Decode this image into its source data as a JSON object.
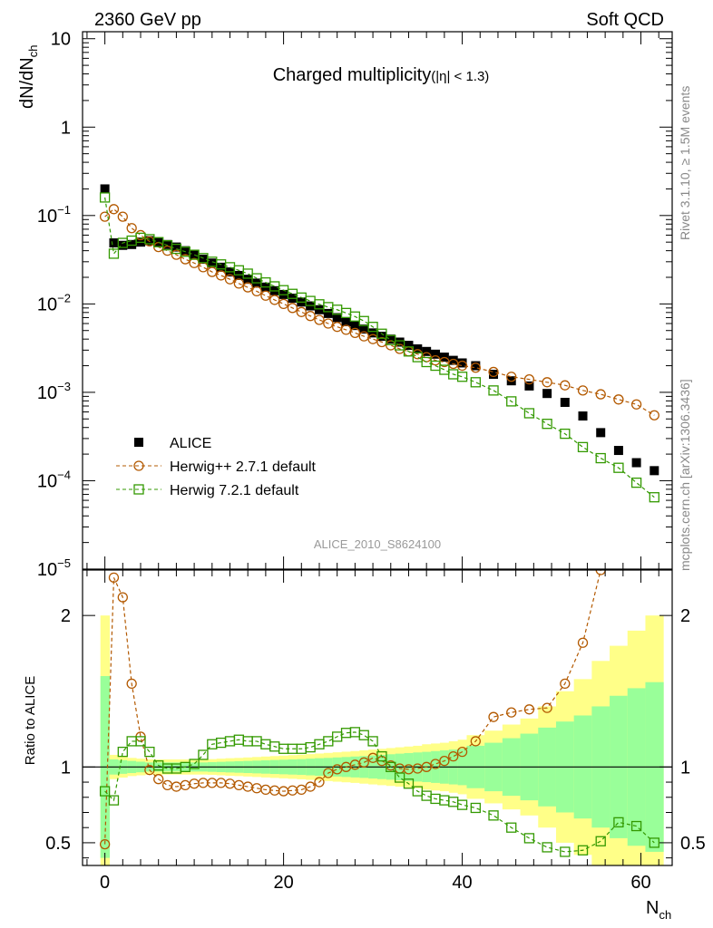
{
  "header": {
    "left": "2360 GeV pp",
    "right": "Soft QCD"
  },
  "side_text": {
    "rivet": "Rivet 3.1.10, ≥ 1.5M events",
    "mcplots": "mcplots.cern.ch [arXiv:1306.3436]"
  },
  "watermark": "ALICE_2010_S8624100",
  "colors": {
    "data": "#000000",
    "herwigpp": "#b35900",
    "herwig7": "#339900",
    "band_inner": "#99ff99",
    "band_outer": "#ffff88"
  },
  "chart_data": [
    {
      "type": "scatter",
      "title": "Charged multiplicity",
      "title_suffix": "(|η| < 1.3)",
      "ylabel": "dN/dN",
      "ylabel_sub": "ch",
      "yscale": "log",
      "ylim": [
        1e-05,
        12
      ],
      "xlim": [
        -2.5,
        63.5
      ],
      "yticks": [
        {
          "v": 10,
          "base": "10",
          "exp": ""
        },
        {
          "v": 1,
          "base": "1",
          "exp": ""
        },
        {
          "v": 0.1,
          "base": "10",
          "exp": "−1"
        },
        {
          "v": 0.01,
          "base": "10",
          "exp": "−2"
        },
        {
          "v": 0.001,
          "base": "10",
          "exp": "−3"
        },
        {
          "v": 0.0001,
          "base": "10",
          "exp": "−4"
        },
        {
          "v": 1e-05,
          "base": "10",
          "exp": "−5"
        }
      ],
      "legend": [
        "ALICE",
        "Herwig++ 2.7.1 default",
        "Herwig 7.2.1 default"
      ],
      "series": [
        {
          "name": "ALICE",
          "x": [
            0,
            1,
            2,
            3,
            4,
            5,
            6,
            7,
            8,
            9,
            10,
            11,
            12,
            13,
            14,
            15,
            16,
            17,
            18,
            19,
            20,
            21,
            22,
            23,
            24,
            25,
            26,
            27,
            28,
            29,
            30,
            31,
            32,
            33,
            34,
            35,
            36,
            37,
            38,
            39,
            40,
            41.5,
            43.5,
            45.5,
            47.5,
            49.5,
            51.5,
            53.5,
            55.5,
            57.5,
            59.5,
            61.5
          ],
          "y": [
            0.2,
            0.049,
            0.046,
            0.047,
            0.05,
            0.052,
            0.05,
            0.047,
            0.044,
            0.04,
            0.036,
            0.032,
            0.029,
            0.026,
            0.023,
            0.021,
            0.019,
            0.0172,
            0.0155,
            0.0141,
            0.0128,
            0.0116,
            0.0105,
            0.0095,
            0.0086,
            0.0078,
            0.007,
            0.0063,
            0.0057,
            0.0052,
            0.0047,
            0.0043,
            0.004,
            0.0037,
            0.0034,
            0.0031,
            0.0029,
            0.0027,
            0.0025,
            0.0023,
            0.00215,
            0.002,
            0.0016,
            0.00135,
            0.00118,
            0.00097,
            0.00077,
            0.00054,
            0.00035,
            0.00022,
            0.00016,
            0.00013
          ]
        },
        {
          "name": "Herwig++ 2.7.1 default",
          "x": [
            0,
            1,
            2,
            3,
            4,
            5,
            6,
            7,
            8,
            9,
            10,
            11,
            12,
            13,
            14,
            15,
            16,
            17,
            18,
            19,
            20,
            21,
            22,
            23,
            24,
            25,
            26,
            27,
            28,
            29,
            30,
            31,
            32,
            33,
            34,
            35,
            36,
            37,
            38,
            39,
            40,
            41.5,
            43.5,
            45.5,
            47.5,
            49.5,
            51.5,
            53.5,
            55.5,
            57.5,
            59.5,
            61.5
          ],
          "y": [
            0.097,
            0.118,
            0.097,
            0.072,
            0.06,
            0.051,
            0.044,
            0.04,
            0.036,
            0.032,
            0.029,
            0.026,
            0.023,
            0.021,
            0.019,
            0.017,
            0.0154,
            0.0139,
            0.0124,
            0.0111,
            0.01,
            0.009,
            0.0081,
            0.0073,
            0.0066,
            0.006,
            0.0055,
            0.0051,
            0.0047,
            0.0043,
            0.004,
            0.0037,
            0.0034,
            0.0031,
            0.0029,
            0.0027,
            0.0025,
            0.0023,
            0.0022,
            0.0021,
            0.002,
            0.0019,
            0.0017,
            0.0015,
            0.0014,
            0.0013,
            0.0012,
            0.00105,
            0.00095,
            0.00083,
            0.00073,
            0.00055
          ]
        },
        {
          "name": "Herwig 7.2.1 default",
          "x": [
            0,
            1,
            2,
            3,
            4,
            5,
            6,
            7,
            8,
            9,
            10,
            11,
            12,
            13,
            14,
            15,
            16,
            17,
            18,
            19,
            20,
            21,
            22,
            23,
            24,
            25,
            26,
            27,
            28,
            29,
            30,
            31,
            32,
            33,
            34,
            35,
            36,
            37,
            38,
            39,
            40,
            41.5,
            43.5,
            45.5,
            47.5,
            49.5,
            51.5,
            53.5,
            55.5,
            57.5,
            59.5,
            61.5
          ],
          "y": [
            0.16,
            0.037,
            0.049,
            0.052,
            0.056,
            0.054,
            0.05,
            0.046,
            0.042,
            0.039,
            0.036,
            0.033,
            0.03,
            0.028,
            0.026,
            0.024,
            0.022,
            0.0195,
            0.0175,
            0.0158,
            0.0143,
            0.013,
            0.0118,
            0.0108,
            0.0099,
            0.0092,
            0.0086,
            0.0079,
            0.0072,
            0.0064,
            0.0055,
            0.0046,
            0.0039,
            0.0034,
            0.0029,
            0.0025,
            0.0022,
            0.002,
            0.0018,
            0.0016,
            0.0015,
            0.0013,
            0.00105,
            0.00079,
            0.00058,
            0.00044,
            0.00034,
            0.00024,
            0.00018,
            0.00014,
            9.5e-05,
            6.5e-05
          ]
        }
      ]
    },
    {
      "type": "scatter",
      "ylabel": "Ratio to ALICE",
      "xlabel": "N",
      "xlabel_sub": "ch",
      "ylim": [
        0.35,
        2.3
      ],
      "xlim": [
        -2.5,
        63.5
      ],
      "xticks": [
        0,
        20,
        40,
        60
      ],
      "yticks": [
        0.5,
        1,
        2
      ],
      "reference_line": 1,
      "band_edges": [
        -0.5,
        0.5,
        1.5,
        2.5,
        3.5,
        4.5,
        5.5,
        6.5,
        7.5,
        8.5,
        9.5,
        10.5,
        11.5,
        12.5,
        13.5,
        14.5,
        15.5,
        16.5,
        17.5,
        18.5,
        19.5,
        20.5,
        21.5,
        22.5,
        23.5,
        24.5,
        25.5,
        26.5,
        27.5,
        28.5,
        29.5,
        30.5,
        31.5,
        32.5,
        33.5,
        34.5,
        35.5,
        36.5,
        37.5,
        38.5,
        39.5,
        40.5,
        42.5,
        44.5,
        46.5,
        48.5,
        50.5,
        52.5,
        54.5,
        56.5,
        58.5,
        60.5,
        62.5
      ],
      "band_inner": [
        0.6,
        0.05,
        0.045,
        0.04,
        0.035,
        0.03,
        0.03,
        0.03,
        0.03,
        0.03,
        0.03,
        0.03,
        0.032,
        0.034,
        0.036,
        0.038,
        0.04,
        0.042,
        0.044,
        0.046,
        0.048,
        0.05,
        0.052,
        0.055,
        0.058,
        0.06,
        0.063,
        0.066,
        0.069,
        0.072,
        0.076,
        0.08,
        0.084,
        0.088,
        0.092,
        0.096,
        0.1,
        0.105,
        0.11,
        0.115,
        0.12,
        0.14,
        0.16,
        0.19,
        0.22,
        0.26,
        0.3,
        0.34,
        0.4,
        0.47,
        0.52,
        0.56
      ],
      "band_outer": [
        1.0,
        0.08,
        0.07,
        0.06,
        0.055,
        0.05,
        0.05,
        0.05,
        0.05,
        0.05,
        0.05,
        0.05,
        0.052,
        0.055,
        0.058,
        0.06,
        0.063,
        0.066,
        0.069,
        0.072,
        0.075,
        0.078,
        0.081,
        0.085,
        0.089,
        0.093,
        0.097,
        0.101,
        0.105,
        0.11,
        0.115,
        0.12,
        0.125,
        0.13,
        0.135,
        0.14,
        0.15,
        0.155,
        0.16,
        0.17,
        0.18,
        0.21,
        0.24,
        0.28,
        0.32,
        0.4,
        0.5,
        0.58,
        0.7,
        0.8,
        0.9,
        1.0
      ],
      "series": [
        {
          "name": "Herwig++ 2.7.1 default",
          "x": [
            0,
            1,
            2,
            3,
            4,
            5,
            6,
            7,
            8,
            9,
            10,
            11,
            12,
            13,
            14,
            15,
            16,
            17,
            18,
            19,
            20,
            21,
            22,
            23,
            24,
            25,
            26,
            27,
            28,
            29,
            30,
            31,
            32,
            33,
            34,
            35,
            36,
            37,
            38,
            39,
            40,
            41.5,
            43.5,
            45.5,
            47.5,
            49.5,
            51.5,
            53.5,
            55.5
          ],
          "y": [
            0.49,
            2.25,
            2.12,
            1.55,
            1.2,
            0.98,
            0.92,
            0.88,
            0.87,
            0.88,
            0.89,
            0.895,
            0.895,
            0.895,
            0.89,
            0.88,
            0.87,
            0.86,
            0.85,
            0.845,
            0.84,
            0.845,
            0.85,
            0.87,
            0.9,
            0.96,
            0.985,
            1.0,
            1.015,
            1.03,
            1.06,
            1.04,
            1.01,
            0.99,
            0.985,
            0.99,
            1.0,
            1.02,
            1.04,
            1.07,
            1.1,
            1.17,
            1.33,
            1.36,
            1.38,
            1.39,
            1.55,
            1.82,
            2.3
          ]
        },
        {
          "name": "Herwig 7.2.1 default",
          "x": [
            0,
            1,
            2,
            3,
            4,
            5,
            6,
            7,
            8,
            9,
            10,
            11,
            12,
            13,
            14,
            15,
            16,
            17,
            18,
            19,
            20,
            21,
            22,
            23,
            24,
            25,
            26,
            27,
            28,
            29,
            30,
            31,
            32,
            33,
            34,
            35,
            36,
            37,
            38,
            39,
            40,
            41.5,
            43.5,
            45.5,
            47.5,
            49.5,
            51.5,
            53.5,
            55.5,
            57.5,
            59.5,
            61.5
          ],
          "y": [
            0.84,
            0.78,
            1.1,
            1.17,
            1.17,
            1.1,
            1.01,
            0.99,
            0.99,
            1.0,
            1.02,
            1.08,
            1.15,
            1.16,
            1.17,
            1.18,
            1.17,
            1.17,
            1.15,
            1.135,
            1.12,
            1.12,
            1.12,
            1.13,
            1.15,
            1.17,
            1.2,
            1.225,
            1.23,
            1.21,
            1.17,
            1.07,
            1.0,
            0.93,
            0.89,
            0.84,
            0.81,
            0.79,
            0.78,
            0.77,
            0.75,
            0.73,
            0.68,
            0.6,
            0.53,
            0.47,
            0.44,
            0.45,
            0.51,
            0.635,
            0.61,
            0.5
          ]
        }
      ]
    }
  ]
}
